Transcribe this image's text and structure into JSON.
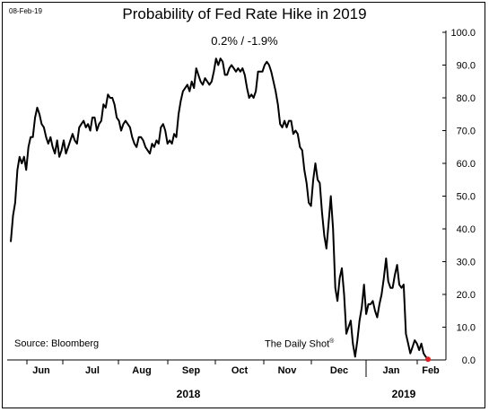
{
  "header": {
    "date": "08-Feb-19",
    "title": "Probability of Fed Rate Hike in 2019",
    "subtitle": "0.2%  /  -1.9%"
  },
  "footer": {
    "source": "Source: Bloomberg",
    "brand": "The Daily Shot",
    "brand_mark": "®"
  },
  "chart_data": {
    "type": "line",
    "title": "Probability of Fed Rate Hike in 2019",
    "subtitle": "0.2%  /  -1.9%",
    "xlabel": "",
    "ylabel": "",
    "ylim": [
      0,
      100
    ],
    "yticks": [
      0,
      10,
      20,
      30,
      40,
      50,
      60,
      70,
      80,
      90,
      100
    ],
    "ytick_labels": [
      "0.0",
      "10.0",
      "20.0",
      "30.0",
      "40.0",
      "50.0",
      "60.0",
      "70.0",
      "80.0",
      "90.0",
      "100.0"
    ],
    "month_labels": [
      "Jun",
      "Jul",
      "Aug",
      "Sep",
      "Oct",
      "Nov",
      "Dec",
      "Jan",
      "Feb"
    ],
    "year_labels": [
      "2018",
      "2019"
    ],
    "grid": false,
    "line_color": "#000000",
    "last_point_color": "#e02020",
    "series": [
      {
        "values": [
          36,
          44,
          48,
          58,
          62,
          60,
          62,
          58,
          65,
          68,
          68,
          74,
          77,
          75,
          72,
          71,
          68,
          66,
          68,
          65,
          63,
          67,
          62,
          64,
          67,
          63,
          65,
          67,
          69,
          67,
          66,
          71,
          72,
          73,
          71,
          72,
          70,
          74,
          74,
          70,
          72,
          73,
          78,
          77,
          81,
          80,
          80,
          78,
          74,
          73,
          70,
          72,
          73,
          72,
          71,
          68,
          66,
          65,
          68,
          68,
          67,
          65,
          64,
          63,
          66,
          65,
          67,
          66,
          71,
          72,
          70,
          66,
          67,
          66,
          69,
          68,
          75,
          79,
          82,
          83,
          84,
          82,
          85,
          83,
          89,
          87,
          85,
          84,
          86,
          85,
          84,
          85,
          88,
          92,
          90,
          92,
          91,
          87,
          87,
          89,
          90,
          89,
          88,
          89,
          88,
          89,
          87,
          83,
          80,
          81,
          80,
          82,
          88,
          88,
          88,
          90,
          91,
          90,
          88,
          85,
          82,
          78,
          72,
          71,
          73,
          71,
          73,
          73,
          69,
          70,
          69,
          65,
          64,
          58,
          54,
          48,
          47,
          55,
          60,
          55,
          54,
          45,
          38,
          34,
          42,
          50,
          40,
          22,
          18,
          25,
          28,
          20,
          8,
          10,
          12,
          5,
          1,
          6,
          12,
          16,
          23,
          14,
          17,
          17,
          18,
          15,
          13,
          17,
          20,
          25,
          31,
          24,
          22,
          22,
          26,
          29,
          23,
          22,
          23,
          8,
          5,
          2,
          4,
          6,
          5,
          3,
          5,
          2,
          1,
          0.2
        ]
      }
    ]
  }
}
